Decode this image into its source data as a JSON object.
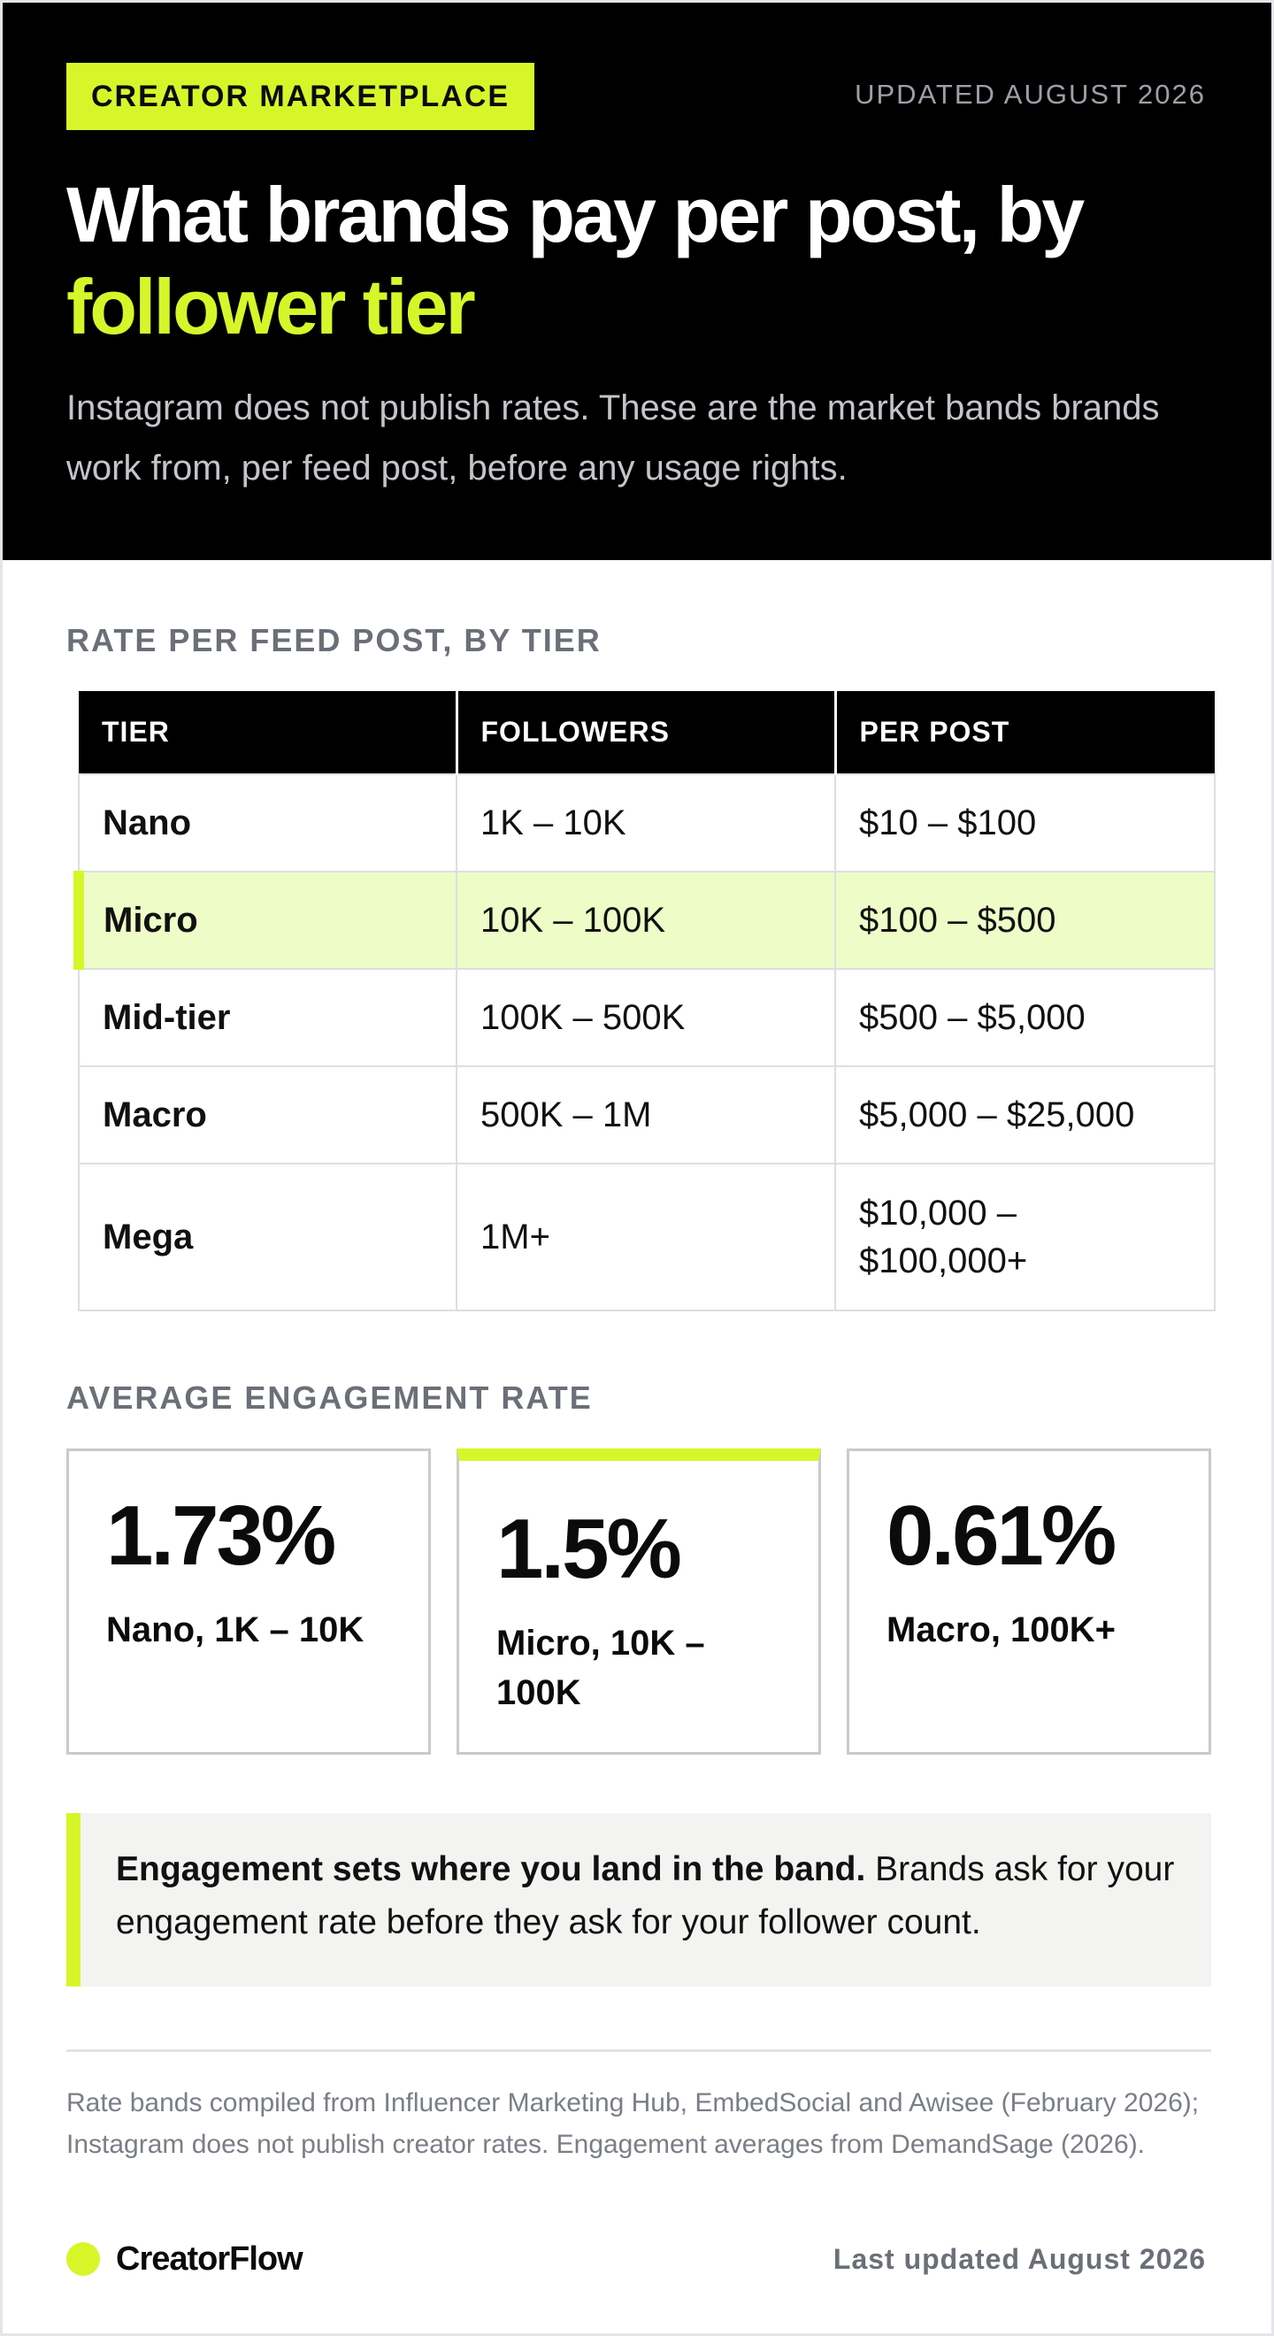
{
  "header": {
    "tag": "CREATOR MARKETPLACE",
    "updated": "UPDATED AUGUST 2026",
    "headline_line1": "What brands pay per post, by",
    "headline_line2": "follower tier",
    "lede": "Instagram does not publish rates. These are the market bands brands work from, per feed post, before any usage rights."
  },
  "rates": {
    "section_label": "RATE PER FEED POST, BY TIER",
    "columns": [
      "TIER",
      "FOLLOWERS",
      "PER POST"
    ],
    "rows": [
      {
        "tier": "Nano",
        "followers": "1K – 10K",
        "per_post": "$10 – $100"
      },
      {
        "tier": "Micro",
        "followers": "10K – 100K",
        "per_post": "$100 – $500"
      },
      {
        "tier": "Mid-tier",
        "followers": "100K – 500K",
        "per_post": "$500 – $5,000"
      },
      {
        "tier": "Macro",
        "followers": "500K – 1M",
        "per_post": "$5,000 – $25,000"
      },
      {
        "tier": "Mega",
        "followers": "1M+",
        "per_post_line1": "$10,000 –",
        "per_post_line2": "$100,000+"
      }
    ],
    "highlighted_tier": "Micro"
  },
  "engagement": {
    "section_label": "AVERAGE ENGAGEMENT RATE",
    "cards": [
      {
        "value": "1.73%",
        "label": "Nano, 1K – 10K"
      },
      {
        "value": "1.5%",
        "label": "Micro, 10K – 100K"
      },
      {
        "value": "0.61%",
        "label": "Macro, 100K+"
      }
    ],
    "featured_card": "Micro, 10K – 100K"
  },
  "callout": {
    "strong": "Engagement sets where you land in the band.",
    "text": " Brands ask for your engagement rate before they ask for your follower count."
  },
  "footer": {
    "footnote": "Rate bands compiled from Influencer Marketing Hub, EmbedSocial and Awisee (February 2026); Instagram does not publish creator rates. Engagement averages from DemandSage (2026).",
    "brand": "CreatorFlow",
    "last_updated": "Last updated August 2026"
  },
  "colors": {
    "accent": "#d7f62a",
    "hero_bg": "#000000",
    "highlight_row": "#eefcc8",
    "muted_text": "#6b6f77"
  }
}
